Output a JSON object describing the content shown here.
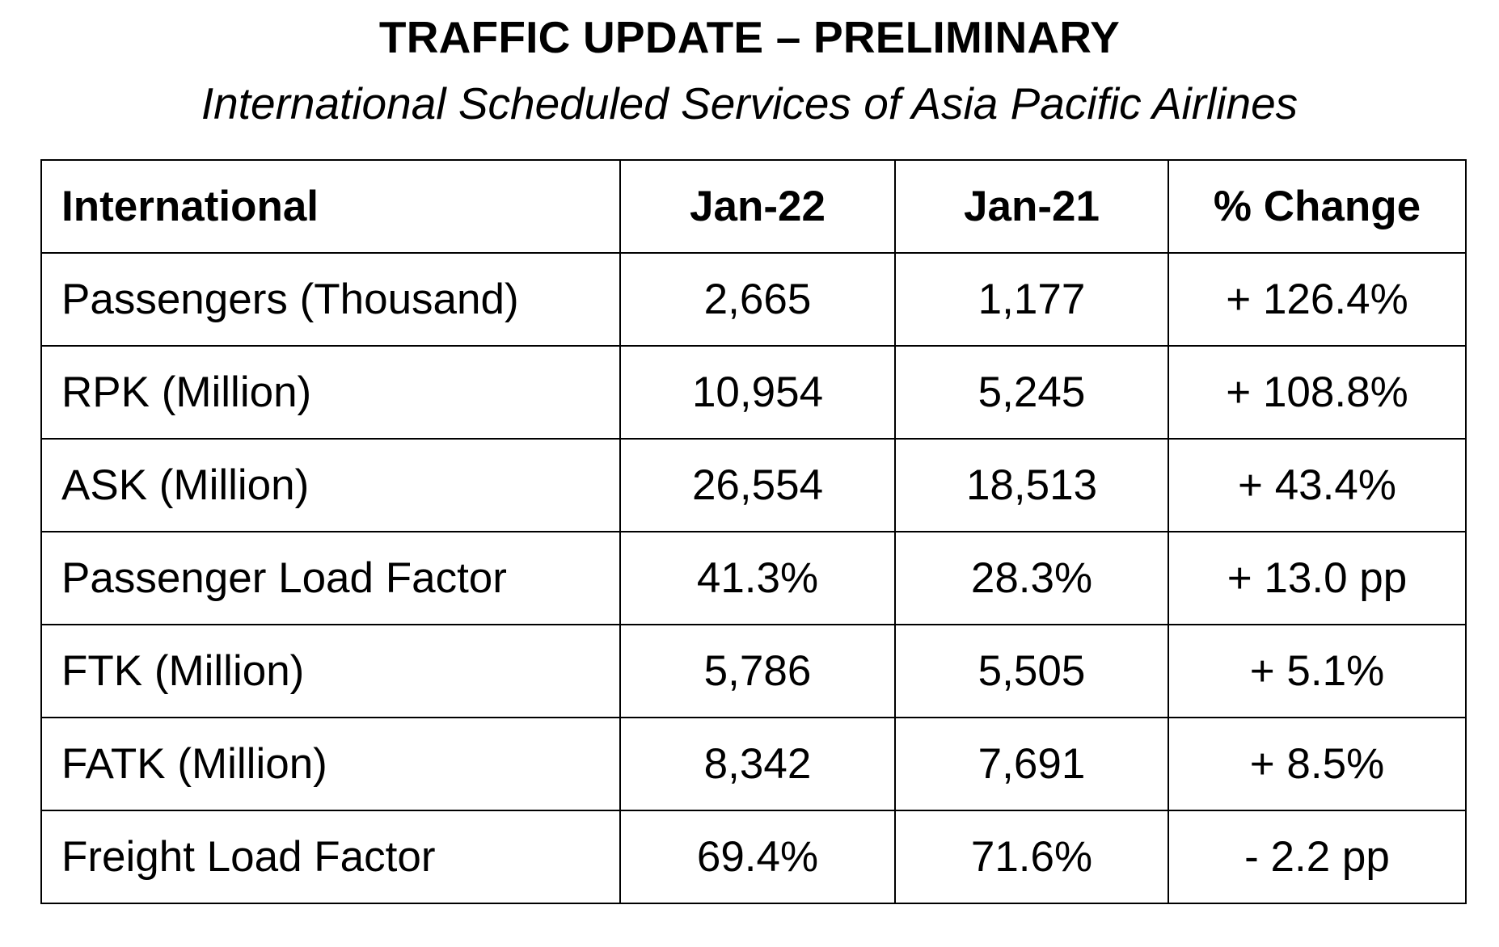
{
  "header": {
    "title": "TRAFFIC UPDATE – PRELIMINARY",
    "subtitle": "International Scheduled Services of Asia Pacific Airlines"
  },
  "table": {
    "columns": [
      "International",
      "Jan-22",
      "Jan-21",
      "% Change"
    ],
    "rows": [
      [
        "Passengers (Thousand)",
        "2,665",
        "1,177",
        "+ 126.4%"
      ],
      [
        "RPK (Million)",
        "10,954",
        "5,245",
        "+ 108.8%"
      ],
      [
        "ASK (Million)",
        "26,554",
        "18,513",
        "+ 43.4%"
      ],
      [
        "Passenger Load Factor",
        "41.3%",
        "28.3%",
        "+ 13.0 pp"
      ],
      [
        "FTK (Million)",
        "5,786",
        "5,505",
        "+ 5.1%"
      ],
      [
        "FATK (Million)",
        "8,342",
        "7,691",
        "+ 8.5%"
      ],
      [
        "Freight Load Factor",
        "69.4%",
        "71.6%",
        "- 2.2 pp"
      ]
    ]
  }
}
